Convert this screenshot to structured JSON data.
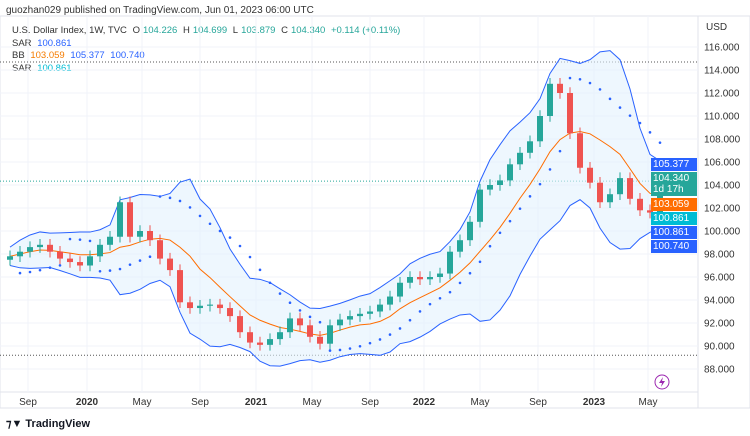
{
  "header": {
    "published": "guozhan029 published on TradingView.com, Jun 01, 2023 06:00 UTC"
  },
  "legend": {
    "symbol": "U.S. Dollar Index, 1W, TVC",
    "o_label": "O",
    "o": "104.226",
    "h_label": "H",
    "h": "104.699",
    "l_label": "L",
    "l": "103.879",
    "c_label": "C",
    "c": "104.340",
    "change": "+0.114 (+0.11%)",
    "sar1_label": "SAR",
    "sar1": "100.861",
    "bb_label": "BB",
    "bb_mid": "103.059",
    "bb_up": "105.377",
    "bb_low": "100.740",
    "sar2_label": "SAR",
    "sar2": "100.861"
  },
  "footer": {
    "brand": "TradingView"
  },
  "colors": {
    "up": "#26a69a",
    "down": "#ef5350",
    "bb_band": "#2962ff",
    "bb_basis": "#ff6d00",
    "sar": "#2962ff",
    "fill": "#e3f2fd"
  },
  "chart_data": {
    "type": "candlestick",
    "currency": "USD",
    "ylim": [
      87,
      117
    ],
    "y_ticks": [
      "116.000",
      "114.000",
      "112.000",
      "110.000",
      "108.000",
      "106.000",
      "104.000",
      "102.000",
      "100.000",
      "98.000",
      "96.000",
      "94.000",
      "92.000",
      "90.000",
      "88.000"
    ],
    "x_ticks": [
      "Sep",
      "2020",
      "May",
      "Sep",
      "2021",
      "May",
      "Sep",
      "2022",
      "May",
      "Sep",
      "2023",
      "May"
    ],
    "closes": [
      97.8,
      98.2,
      98.6,
      98.8,
      98.2,
      97.6,
      97.3,
      97.0,
      97.8,
      98.8,
      99.5,
      102.5,
      99.5,
      100.0,
      99.2,
      97.6,
      96.6,
      93.8,
      93.3,
      93.5,
      93.6,
      93.3,
      92.6,
      91.2,
      90.3,
      90.1,
      90.6,
      91.2,
      92.4,
      91.8,
      90.8,
      90.2,
      91.8,
      92.3,
      92.6,
      92.8,
      93.0,
      93.6,
      94.3,
      95.5,
      96.0,
      95.8,
      96.0,
      96.3,
      98.2,
      99.2,
      100.8,
      103.6,
      104.0,
      104.4,
      105.8,
      106.8,
      107.8,
      110.0,
      112.8,
      112.0,
      108.5,
      105.5,
      104.2,
      102.5,
      103.2,
      104.6,
      102.8,
      101.8,
      101.6,
      104.34
    ],
    "hlines": [
      114.7,
      89.2
    ],
    "badges": [
      {
        "value": "105.377",
        "color": "#2962ff"
      },
      {
        "value": "104.340",
        "sub": "1d 17h",
        "color": "#26a69a"
      },
      {
        "value": "103.059",
        "color": "#ff6d00"
      },
      {
        "value": "100.861",
        "color": "#00bcd4"
      },
      {
        "value": "100.861",
        "color": "#2962ff"
      },
      {
        "value": "100.740",
        "color": "#2962ff"
      }
    ]
  }
}
